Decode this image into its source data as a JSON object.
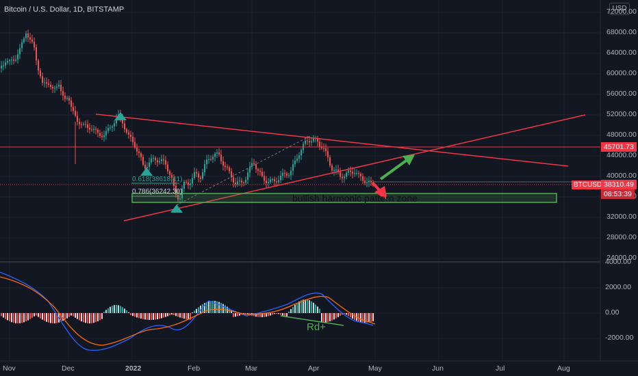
{
  "header": {
    "title": "Bitcoin / U.S. Dollar, 1D, BITSTAMP",
    "currency_button": "USD"
  },
  "price_axis": {
    "ticks": [
      "72000.00",
      "68000.00",
      "64000.00",
      "60000.00",
      "56000.00",
      "52000.00",
      "48000.00",
      "44000.00",
      "40000.00",
      "36000.00",
      "32000.00",
      "28000.00",
      "24000.00"
    ]
  },
  "time_axis": {
    "labels": [
      "Nov",
      "Dec",
      "2022",
      "Feb",
      "Mar",
      "Apr",
      "May",
      "Jun",
      "Jul",
      "Aug"
    ]
  },
  "price_tags": {
    "level_line": "45701.73",
    "symbol": "BTCUSD",
    "last_price": "38310.49",
    "countdown": "08:53:39"
  },
  "annotations": {
    "fib_1": "0.618(38618.41)",
    "fib_2": "0.786(36242.30)",
    "zone_label": "bullish harmonic pattern zone",
    "divergence_label": "Rd+"
  },
  "macd_axis": {
    "ticks": [
      "4000.00",
      "2000.00",
      "0.00",
      "-2000.00"
    ]
  },
  "colors": {
    "background": "#131722",
    "up": "#26a69a",
    "down": "#ef5350",
    "trendline": "#f23645",
    "zone": "#4caf50",
    "macd": "#2962ff",
    "signal": "#ff6d00"
  }
}
